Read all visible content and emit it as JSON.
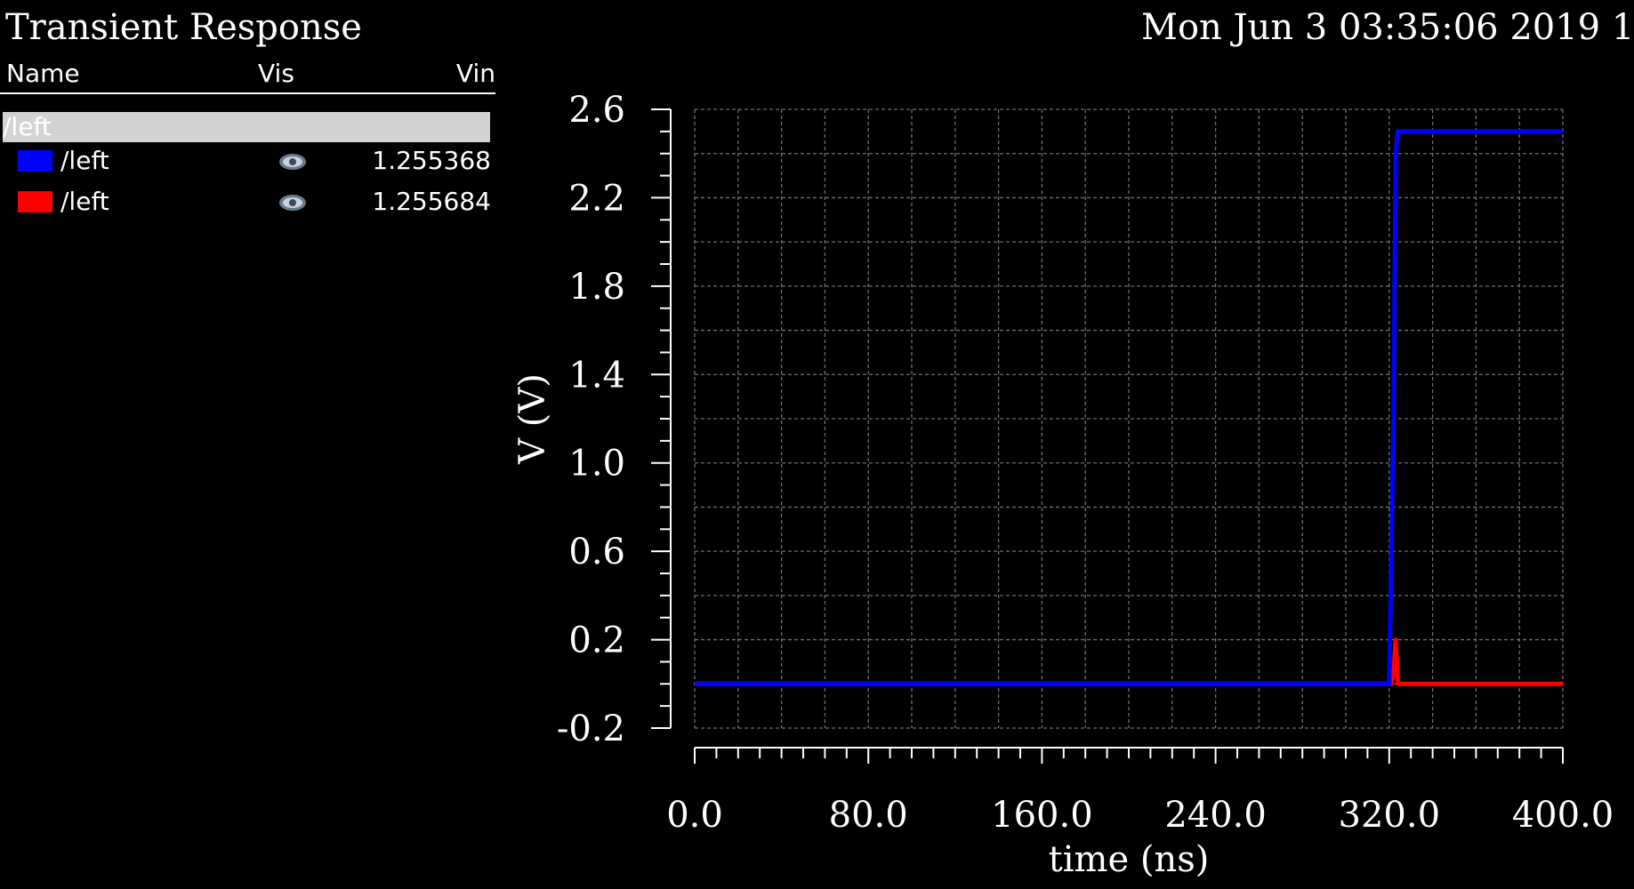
{
  "header": {
    "title": "Transient Response",
    "timestamp": "Mon Jun 3 03:35:06 2019 1"
  },
  "legend": {
    "columns": {
      "name": "Name",
      "vis": "Vis",
      "vin": "Vin"
    },
    "group": "/left",
    "rows": [
      {
        "name": "/left",
        "color": "#0000ff",
        "vis_icon": "eye-icon",
        "value": "1.255368"
      },
      {
        "name": "/left",
        "color": "#ff0000",
        "vis_icon": "eye-icon",
        "value": "1.255684"
      }
    ]
  },
  "chart_data": {
    "type": "line",
    "title": "",
    "xlabel": "time (ns)",
    "ylabel": "V (V)",
    "xlim": [
      0,
      400
    ],
    "ylim": [
      -0.2,
      2.6
    ],
    "xticks": [
      "0.0",
      "80.0",
      "160.0",
      "240.0",
      "320.0",
      "400.0"
    ],
    "yticks": [
      "2.6",
      "2.2",
      "1.8",
      "1.4",
      "1.0",
      "0.6",
      "0.2",
      "-0.2"
    ],
    "grid": true,
    "series": [
      {
        "color": "#ff0000",
        "x": [
          0,
          321,
          322,
          323,
          324,
          400
        ],
        "y": [
          0,
          0,
          0.05,
          0.2,
          0.0,
          0.0
        ]
      },
      {
        "color": "#0000ff",
        "x": [
          0,
          320,
          322,
          323,
          324,
          400
        ],
        "y": [
          0,
          0,
          1.2,
          2.4,
          2.5,
          2.5
        ]
      }
    ]
  }
}
